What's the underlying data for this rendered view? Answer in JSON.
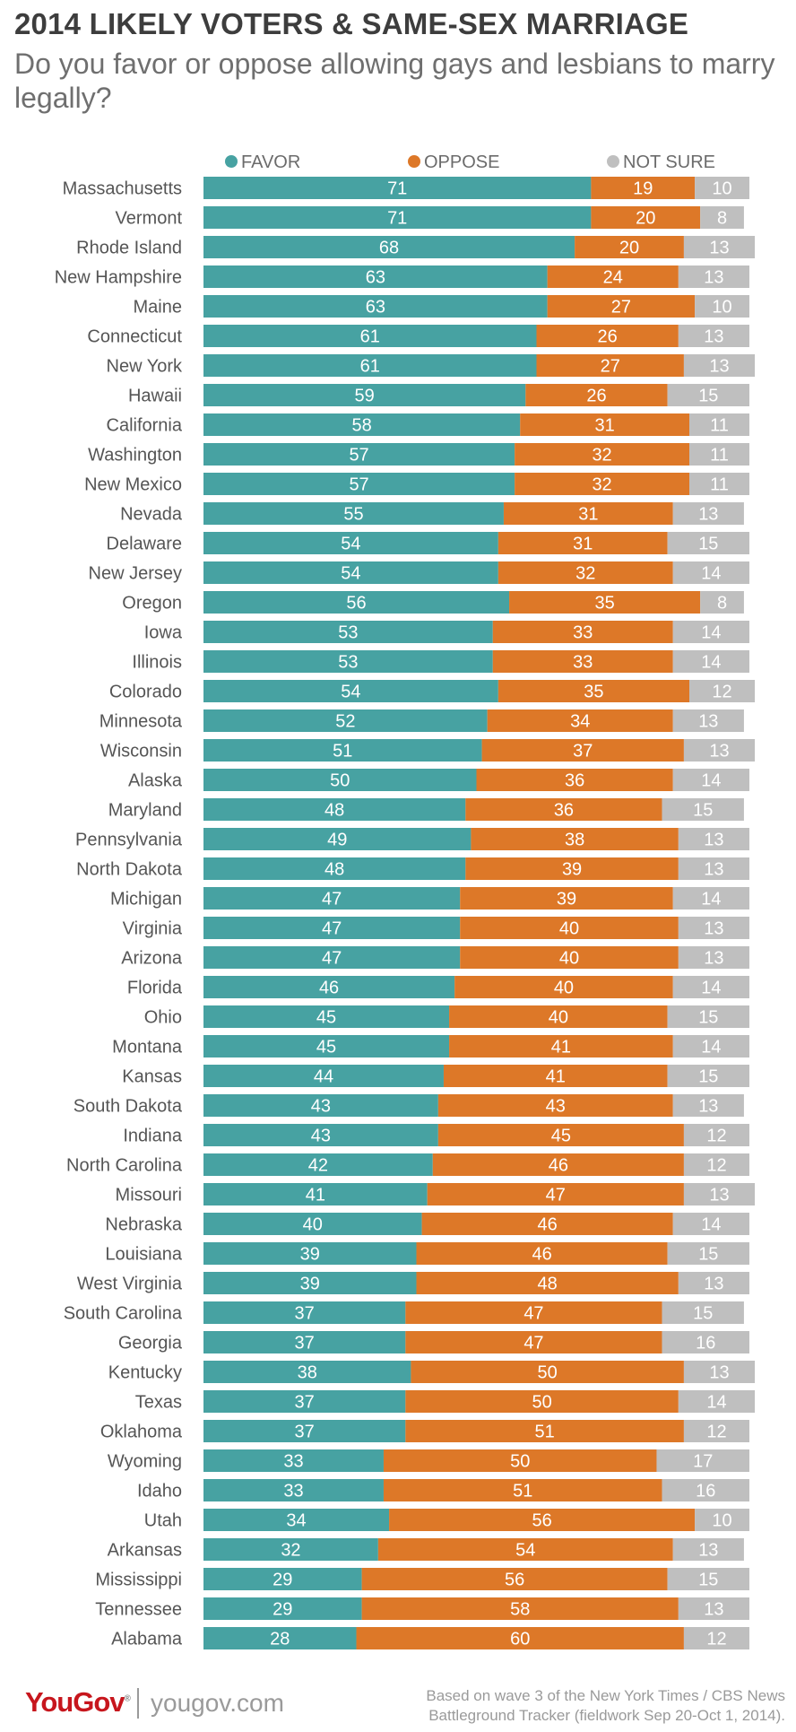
{
  "title": "2014 LIKELY VOTERS & SAME-SEX MARRIAGE",
  "subtitle": "Do you favor or oppose allowing gays and lesbians to marry legally?",
  "brand": {
    "logo": "YouGov",
    "url": "yougov.com"
  },
  "source": {
    "line1": "Based on wave 3 of the New York Times / CBS News",
    "line2": "Battleground Tracker (fieldwork Sep 20-Oct 1, 2014)."
  },
  "chart_data": {
    "type": "bar",
    "orientation": "horizontal",
    "stacked": true,
    "legend_position": "top",
    "grid": false,
    "xlim": [
      0,
      100
    ],
    "categories": [
      "Massachusetts",
      "Vermont",
      "Rhode Island",
      "New Hampshire",
      "Maine",
      "Connecticut",
      "New York",
      "Hawaii",
      "California",
      "Washington",
      "New Mexico",
      "Nevada",
      "Delaware",
      "New Jersey",
      "Oregon",
      "Iowa",
      "Illinois",
      "Colorado",
      "Minnesota",
      "Wisconsin",
      "Alaska",
      "Maryland",
      "Pennsylvania",
      "North Dakota",
      "Michigan",
      "Virginia",
      "Arizona",
      "Florida",
      "Ohio",
      "Montana",
      "Kansas",
      "South Dakota",
      "Indiana",
      "North Carolina",
      "Missouri",
      "Nebraska",
      "Louisiana",
      "West Virginia",
      "South Carolina",
      "Georgia",
      "Kentucky",
      "Texas",
      "Oklahoma",
      "Wyoming",
      "Idaho",
      "Utah",
      "Arkansas",
      "Mississippi",
      "Tennessee",
      "Alabama"
    ],
    "series": [
      {
        "name": "FAVOR",
        "color": "#47a2a2",
        "values": [
          71,
          71,
          68,
          63,
          63,
          61,
          61,
          59,
          58,
          57,
          57,
          55,
          54,
          54,
          56,
          53,
          53,
          54,
          52,
          51,
          50,
          48,
          49,
          48,
          47,
          47,
          47,
          46,
          45,
          45,
          44,
          43,
          43,
          42,
          41,
          40,
          39,
          39,
          37,
          37,
          38,
          37,
          37,
          33,
          33,
          34,
          32,
          29,
          29,
          28
        ]
      },
      {
        "name": "OPPOSE",
        "color": "#dd7828",
        "values": [
          19,
          20,
          20,
          24,
          27,
          26,
          27,
          26,
          31,
          32,
          32,
          31,
          31,
          32,
          35,
          33,
          33,
          35,
          34,
          37,
          36,
          36,
          38,
          39,
          39,
          40,
          40,
          40,
          40,
          41,
          41,
          43,
          45,
          46,
          47,
          46,
          46,
          48,
          47,
          47,
          50,
          50,
          51,
          50,
          51,
          56,
          54,
          56,
          58,
          60
        ]
      },
      {
        "name": "NOT SURE",
        "color": "#bfbfbf",
        "values": [
          10,
          8,
          13,
          13,
          10,
          13,
          13,
          15,
          11,
          11,
          11,
          13,
          15,
          14,
          8,
          14,
          14,
          12,
          13,
          13,
          14,
          15,
          13,
          13,
          14,
          13,
          13,
          14,
          15,
          14,
          15,
          13,
          12,
          12,
          13,
          14,
          15,
          13,
          15,
          16,
          13,
          14,
          12,
          17,
          16,
          10,
          13,
          15,
          13,
          12
        ]
      }
    ]
  }
}
